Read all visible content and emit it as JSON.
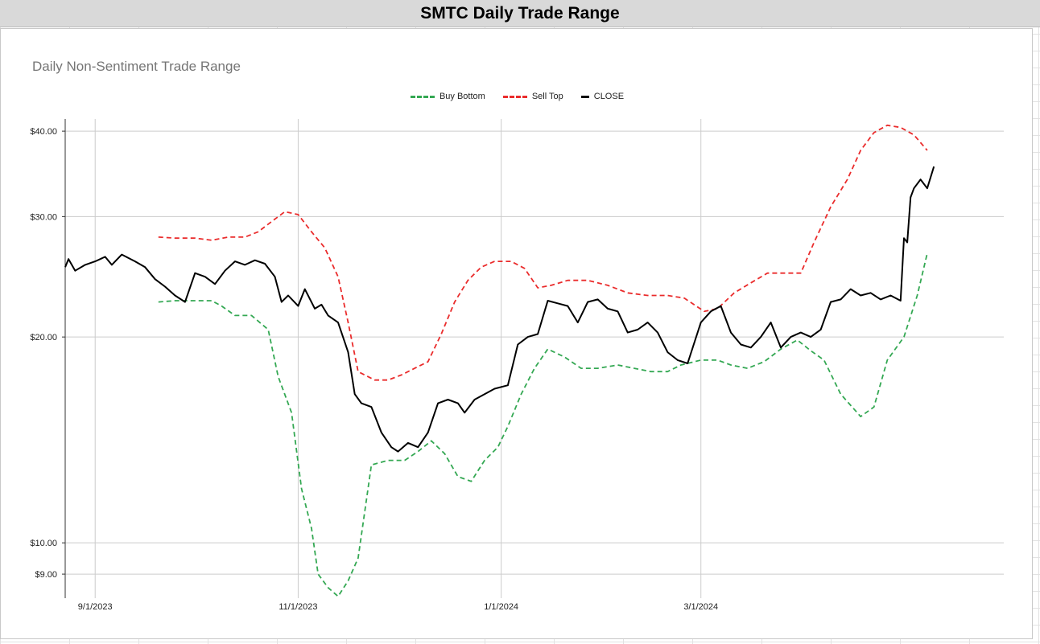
{
  "header": {
    "title": "SMTC Daily Trade Range"
  },
  "chart_data": {
    "type": "line",
    "title": "SMTC Daily Trade Range",
    "subtitle": "Daily Non-Sentiment Trade Range",
    "xlabel": "",
    "ylabel": "",
    "y_scale": "log",
    "ylim": [
      8.3,
      41
    ],
    "y_ticks": [
      40,
      30,
      20,
      10,
      9
    ],
    "y_tick_labels": [
      "$40.00",
      "$30.00",
      "$20.00",
      "$10.00",
      "$9.00"
    ],
    "xlim": [
      "2023-08-23",
      "2024-05-31"
    ],
    "x_ticks": [
      "2023-09-01",
      "2023-11-01",
      "2024-01-01",
      "2024-03-01"
    ],
    "x_tick_labels": [
      "9/1/2023",
      "11/1/2023",
      "1/1/2024",
      "3/1/2024"
    ],
    "grid": true,
    "legend_position": "top-center",
    "series": [
      {
        "name": "Buy Bottom",
        "color": "#34a853",
        "dash": true,
        "points": [
          [
            "2023-09-20",
            22.5
          ],
          [
            "2023-09-25",
            22.6
          ],
          [
            "2023-10-01",
            22.6
          ],
          [
            "2023-10-06",
            22.6
          ],
          [
            "2023-10-09",
            22.2
          ],
          [
            "2023-10-13",
            21.5
          ],
          [
            "2023-10-18",
            21.5
          ],
          [
            "2023-10-23",
            20.5
          ],
          [
            "2023-10-26",
            17.5
          ],
          [
            "2023-10-30",
            15.5
          ],
          [
            "2023-11-02",
            12.0
          ],
          [
            "2023-11-05",
            10.5
          ],
          [
            "2023-11-07",
            9.0
          ],
          [
            "2023-11-10",
            8.6
          ],
          [
            "2023-11-13",
            8.35
          ],
          [
            "2023-11-16",
            8.8
          ],
          [
            "2023-11-19",
            9.5
          ],
          [
            "2023-11-23",
            13.0
          ],
          [
            "2023-11-28",
            13.2
          ],
          [
            "2023-12-03",
            13.2
          ],
          [
            "2023-12-07",
            13.6
          ],
          [
            "2023-12-11",
            14.1
          ],
          [
            "2023-12-15",
            13.5
          ],
          [
            "2023-12-19",
            12.5
          ],
          [
            "2023-12-23",
            12.3
          ],
          [
            "2023-12-27",
            13.2
          ],
          [
            "2023-12-31",
            13.8
          ],
          [
            "2024-01-03",
            14.8
          ],
          [
            "2024-01-07",
            16.5
          ],
          [
            "2024-01-11",
            18.0
          ],
          [
            "2024-01-15",
            19.2
          ],
          [
            "2024-01-20",
            18.7
          ],
          [
            "2024-01-25",
            18.0
          ],
          [
            "2024-01-30",
            18.0
          ],
          [
            "2024-02-05",
            18.2
          ],
          [
            "2024-02-10",
            18.0
          ],
          [
            "2024-02-15",
            17.8
          ],
          [
            "2024-02-20",
            17.8
          ],
          [
            "2024-02-24",
            18.2
          ],
          [
            "2024-03-01",
            18.5
          ],
          [
            "2024-03-06",
            18.5
          ],
          [
            "2024-03-10",
            18.2
          ],
          [
            "2024-03-15",
            18.0
          ],
          [
            "2024-03-20",
            18.4
          ],
          [
            "2024-03-25",
            19.2
          ],
          [
            "2024-03-30",
            19.8
          ],
          [
            "2024-04-03",
            19.1
          ],
          [
            "2024-04-07",
            18.5
          ],
          [
            "2024-04-12",
            16.5
          ],
          [
            "2024-04-18",
            15.3
          ],
          [
            "2024-04-22",
            15.8
          ],
          [
            "2024-04-26",
            18.5
          ],
          [
            "2024-05-01",
            20.0
          ],
          [
            "2024-05-05",
            23.0
          ],
          [
            "2024-05-08",
            26.5
          ]
        ]
      },
      {
        "name": "Sell Top",
        "color": "#ea2c2c",
        "dash": true,
        "points": [
          [
            "2023-09-20",
            28.0
          ],
          [
            "2023-09-25",
            27.9
          ],
          [
            "2023-10-01",
            27.9
          ],
          [
            "2023-10-06",
            27.7
          ],
          [
            "2023-10-11",
            28.0
          ],
          [
            "2023-10-16",
            28.0
          ],
          [
            "2023-10-20",
            28.5
          ],
          [
            "2023-10-24",
            29.5
          ],
          [
            "2023-10-28",
            30.5
          ],
          [
            "2023-11-01",
            30.2
          ],
          [
            "2023-11-05",
            28.5
          ],
          [
            "2023-11-09",
            27.0
          ],
          [
            "2023-11-13",
            24.5
          ],
          [
            "2023-11-16",
            21.0
          ],
          [
            "2023-11-19",
            17.8
          ],
          [
            "2023-11-24",
            17.3
          ],
          [
            "2023-11-28",
            17.3
          ],
          [
            "2023-12-02",
            17.6
          ],
          [
            "2023-12-06",
            18.0
          ],
          [
            "2023-12-10",
            18.4
          ],
          [
            "2023-12-14",
            20.2
          ],
          [
            "2023-12-18",
            22.5
          ],
          [
            "2023-12-22",
            24.2
          ],
          [
            "2023-12-26",
            25.3
          ],
          [
            "2023-12-30",
            25.8
          ],
          [
            "2024-01-04",
            25.8
          ],
          [
            "2024-01-08",
            25.2
          ],
          [
            "2024-01-12",
            23.6
          ],
          [
            "2024-01-16",
            23.8
          ],
          [
            "2024-01-21",
            24.2
          ],
          [
            "2024-01-27",
            24.2
          ],
          [
            "2024-02-02",
            23.8
          ],
          [
            "2024-02-08",
            23.2
          ],
          [
            "2024-02-14",
            23.0
          ],
          [
            "2024-02-20",
            23.0
          ],
          [
            "2024-02-25",
            22.8
          ],
          [
            "2024-03-02",
            21.8
          ],
          [
            "2024-03-06",
            22.0
          ],
          [
            "2024-03-11",
            23.2
          ],
          [
            "2024-03-16",
            24.0
          ],
          [
            "2024-03-21",
            24.8
          ],
          [
            "2024-03-26",
            24.8
          ],
          [
            "2024-03-31",
            24.8
          ],
          [
            "2024-04-04",
            27.5
          ],
          [
            "2024-04-09",
            31.0
          ],
          [
            "2024-04-14",
            34.0
          ],
          [
            "2024-04-18",
            37.5
          ],
          [
            "2024-04-22",
            39.8
          ],
          [
            "2024-04-26",
            40.8
          ],
          [
            "2024-04-30",
            40.5
          ],
          [
            "2024-05-04",
            39.5
          ],
          [
            "2024-05-08",
            37.5
          ]
        ]
      },
      {
        "name": "CLOSE",
        "color": "#000000",
        "dash": false,
        "points": [
          [
            "2023-08-23",
            25.3
          ],
          [
            "2023-08-24",
            26.0
          ],
          [
            "2023-08-26",
            25.0
          ],
          [
            "2023-08-29",
            25.5
          ],
          [
            "2023-09-01",
            25.8
          ],
          [
            "2023-09-04",
            26.2
          ],
          [
            "2023-09-06",
            25.5
          ],
          [
            "2023-09-09",
            26.4
          ],
          [
            "2023-09-13",
            25.8
          ],
          [
            "2023-09-16",
            25.3
          ],
          [
            "2023-09-19",
            24.3
          ],
          [
            "2023-09-22",
            23.7
          ],
          [
            "2023-09-25",
            23.0
          ],
          [
            "2023-09-28",
            22.5
          ],
          [
            "2023-10-01",
            24.8
          ],
          [
            "2023-10-04",
            24.5
          ],
          [
            "2023-10-07",
            23.9
          ],
          [
            "2023-10-10",
            25.0
          ],
          [
            "2023-10-13",
            25.8
          ],
          [
            "2023-10-16",
            25.5
          ],
          [
            "2023-10-19",
            25.9
          ],
          [
            "2023-10-22",
            25.6
          ],
          [
            "2023-10-25",
            24.5
          ],
          [
            "2023-10-27",
            22.5
          ],
          [
            "2023-10-29",
            23.0
          ],
          [
            "2023-11-01",
            22.2
          ],
          [
            "2023-11-03",
            23.5
          ],
          [
            "2023-11-06",
            22.0
          ],
          [
            "2023-11-08",
            22.3
          ],
          [
            "2023-11-10",
            21.5
          ],
          [
            "2023-11-13",
            21.0
          ],
          [
            "2023-11-16",
            19.0
          ],
          [
            "2023-11-18",
            16.5
          ],
          [
            "2023-11-20",
            16.0
          ],
          [
            "2023-11-23",
            15.8
          ],
          [
            "2023-11-26",
            14.5
          ],
          [
            "2023-11-29",
            13.8
          ],
          [
            "2023-12-01",
            13.6
          ],
          [
            "2023-12-04",
            14.0
          ],
          [
            "2023-12-07",
            13.8
          ],
          [
            "2023-12-10",
            14.5
          ],
          [
            "2023-12-13",
            16.0
          ],
          [
            "2023-12-16",
            16.2
          ],
          [
            "2023-12-19",
            16.0
          ],
          [
            "2023-12-21",
            15.5
          ],
          [
            "2023-12-24",
            16.2
          ],
          [
            "2023-12-27",
            16.5
          ],
          [
            "2023-12-30",
            16.8
          ],
          [
            "2024-01-03",
            17.0
          ],
          [
            "2024-01-06",
            19.5
          ],
          [
            "2024-01-09",
            20.0
          ],
          [
            "2024-01-12",
            20.2
          ],
          [
            "2024-01-15",
            22.6
          ],
          [
            "2024-01-18",
            22.4
          ],
          [
            "2024-01-21",
            22.2
          ],
          [
            "2024-01-24",
            21.0
          ],
          [
            "2024-01-27",
            22.5
          ],
          [
            "2024-01-30",
            22.7
          ],
          [
            "2024-02-02",
            22.0
          ],
          [
            "2024-02-05",
            21.8
          ],
          [
            "2024-02-08",
            20.3
          ],
          [
            "2024-02-11",
            20.5
          ],
          [
            "2024-02-14",
            21.0
          ],
          [
            "2024-02-17",
            20.3
          ],
          [
            "2024-02-20",
            19.0
          ],
          [
            "2024-02-23",
            18.5
          ],
          [
            "2024-02-26",
            18.3
          ],
          [
            "2024-03-01",
            21.0
          ],
          [
            "2024-03-04",
            21.8
          ],
          [
            "2024-03-07",
            22.2
          ],
          [
            "2024-03-10",
            20.3
          ],
          [
            "2024-03-13",
            19.5
          ],
          [
            "2024-03-16",
            19.3
          ],
          [
            "2024-03-19",
            20.0
          ],
          [
            "2024-03-22",
            21.0
          ],
          [
            "2024-03-25",
            19.3
          ],
          [
            "2024-03-28",
            20.0
          ],
          [
            "2024-03-31",
            20.3
          ],
          [
            "2024-04-03",
            20.0
          ],
          [
            "2024-04-06",
            20.5
          ],
          [
            "2024-04-09",
            22.5
          ],
          [
            "2024-04-12",
            22.7
          ],
          [
            "2024-04-15",
            23.5
          ],
          [
            "2024-04-18",
            23.0
          ],
          [
            "2024-04-21",
            23.2
          ],
          [
            "2024-04-24",
            22.7
          ],
          [
            "2024-04-27",
            23.0
          ],
          [
            "2024-04-30",
            22.6
          ],
          [
            "2024-05-01",
            27.9
          ],
          [
            "2024-05-02",
            27.5
          ],
          [
            "2024-05-03",
            32.0
          ],
          [
            "2024-05-04",
            33.0
          ],
          [
            "2024-05-06",
            34.0
          ],
          [
            "2024-05-08",
            33.0
          ],
          [
            "2024-05-10",
            35.5
          ]
        ]
      }
    ]
  }
}
